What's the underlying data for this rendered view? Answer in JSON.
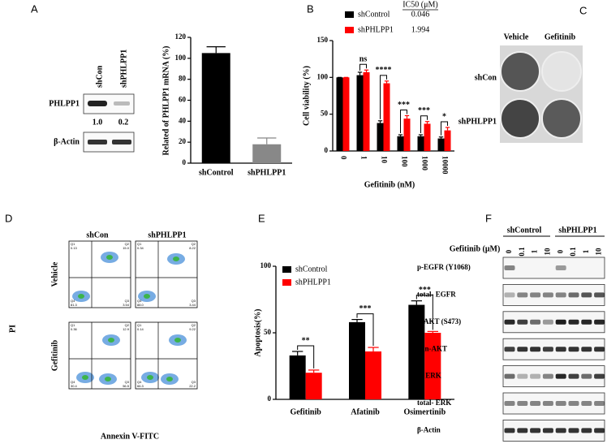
{
  "chart_data": [
    {
      "type": "bar",
      "panel": "A",
      "ylabel": "Related of PHLPP1 mRNA (%)",
      "categories": [
        "shControl",
        "shPHLPP1"
      ],
      "values": [
        105,
        18
      ],
      "errors": [
        6,
        6
      ],
      "colors": [
        "#000000",
        "#888888"
      ],
      "ylim": [
        0,
        120
      ],
      "yticks": [
        0,
        20,
        40,
        60,
        80,
        100,
        120
      ]
    },
    {
      "type": "grouped_bar",
      "panel": "B",
      "ylabel": "Cell viability (%)",
      "xlabel": "Gefitinib (nM)",
      "legend_header": "IC50 (μM)",
      "categories": [
        "0",
        "1",
        "10",
        "100",
        "1000",
        "10000"
      ],
      "series": [
        {
          "name": "shControl",
          "color": "#000000",
          "ic50": 0.046,
          "values": [
            100,
            103,
            38,
            20,
            20,
            17
          ],
          "errors": [
            0,
            4,
            3,
            2,
            2,
            2
          ]
        },
        {
          "name": "shPHLPP1",
          "color": "#ff0000",
          "ic50": 1.994,
          "values": [
            100,
            107,
            92,
            44,
            37,
            28
          ],
          "errors": [
            0,
            3,
            3,
            4,
            3,
            4
          ]
        }
      ],
      "significance": [
        null,
        "ns",
        "****",
        "***",
        "***",
        "*"
      ],
      "ylim": [
        0,
        150
      ],
      "yticks": [
        0,
        50,
        100,
        150
      ]
    },
    {
      "type": "grouped_bar",
      "panel": "E",
      "ylabel": "Apoptosis(%)",
      "categories": [
        "Gefitinib",
        "Afatinib",
        "Osimertinib"
      ],
      "series": [
        {
          "name": "shControl",
          "color": "#000000",
          "values": [
            33,
            58,
            71
          ],
          "errors": [
            3,
            2,
            3
          ]
        },
        {
          "name": "shPHLPP1",
          "color": "#ff0000",
          "values": [
            20,
            36,
            50
          ],
          "errors": [
            2,
            3,
            1
          ]
        }
      ],
      "significance": [
        "**",
        "***",
        "***"
      ],
      "ylim": [
        0,
        100
      ],
      "yticks": [
        0,
        50,
        100
      ]
    }
  ],
  "blot_a": {
    "lanes": [
      "shCon",
      "shPHLPP1"
    ],
    "rows": [
      "PHLPP1",
      "β-Actin"
    ],
    "ratio_labels": [
      "1.0",
      "0.2"
    ]
  },
  "colony": {
    "panel": "C",
    "columns": [
      "Vehicle",
      "Gefitinib"
    ],
    "rows": [
      "shCon",
      "shPHLPP1"
    ]
  },
  "flow": {
    "panel": "D",
    "columns": [
      "shCon",
      "shPHLPP1"
    ],
    "rows": [
      "Vehicle",
      "Gefitinib"
    ],
    "ylabel": "PI",
    "xlabel": "Annexin V-FITC",
    "plots": [
      [
        [
          "Q1",
          "0.13"
        ],
        [
          "Q2",
          "15.0"
        ],
        [
          "Q4",
          "81.3"
        ],
        [
          "Q3",
          "3.54"
        ]
      ],
      [
        [
          "Q1",
          "0.34"
        ],
        [
          "Q2",
          "8.22"
        ],
        [
          "Q4",
          "88.0"
        ],
        [
          "Q3",
          "3.44"
        ]
      ],
      [
        [
          "Q1",
          "0.36"
        ],
        [
          "Q2",
          "12.9"
        ],
        [
          "Q4",
          "30.4"
        ],
        [
          "Q3",
          "56.5"
        ]
      ],
      [
        [
          "Q1",
          "0.14"
        ],
        [
          "Q2",
          "9.22"
        ],
        [
          "Q4",
          "66.3"
        ],
        [
          "Q3",
          "22.2"
        ]
      ]
    ]
  },
  "blot_f": {
    "panel": "F",
    "groups": [
      "shControl",
      "shPHLPP1"
    ],
    "treatment_label": "Gefitinib (μM)",
    "doses": [
      "0",
      "0.1",
      "1",
      "10",
      "0",
      "0.1",
      "1",
      "10"
    ],
    "rows": [
      "p-EGFR (Y1068)",
      "total- EGFR",
      "p-AKT (S473)",
      "pan-AKT",
      "p- ERK",
      "total- ERK",
      "β-Actin"
    ]
  }
}
